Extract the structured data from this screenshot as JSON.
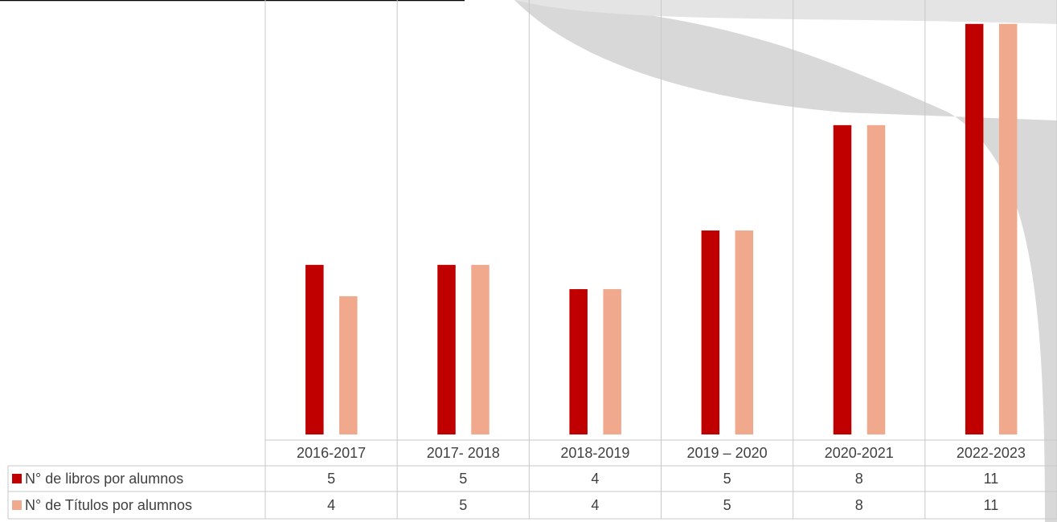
{
  "chart_data": {
    "type": "bar",
    "categories": [
      "2016-2017",
      "2017- 2018",
      "2018-2019",
      "2019 – 2020",
      "2020-2021",
      "2022-2023"
    ],
    "series": [
      {
        "name": "N° de libros por alumnos",
        "color": "#c00000",
        "values": [
          4.54,
          4.54,
          3.89,
          5.46,
          8.28,
          10.99
        ],
        "value_labels": [
          "5",
          "5",
          "4",
          "5",
          "8",
          "11"
        ]
      },
      {
        "name": "N° de Títulos  por alumnos",
        "color": "#f0a98c",
        "values": [
          3.7,
          4.54,
          3.89,
          5.46,
          8.28,
          10.99
        ],
        "value_labels": [
          "4",
          "5",
          "4",
          "5",
          "8",
          "11"
        ]
      }
    ],
    "ylim": [
      0,
      11.63
    ]
  }
}
